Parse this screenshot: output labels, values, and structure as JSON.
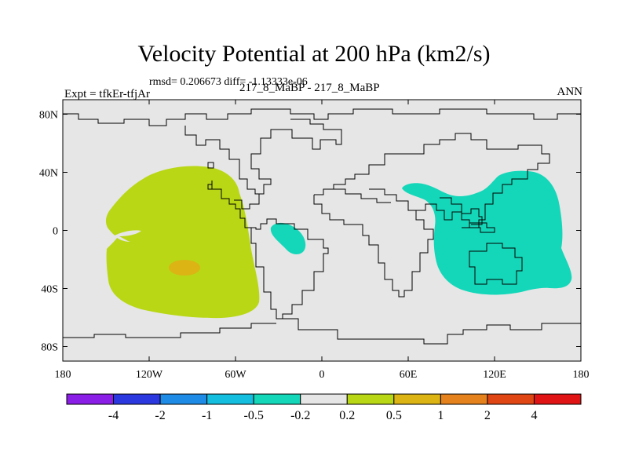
{
  "header": {
    "title": "Velocity Potential at 200 hPa (km2/s)",
    "stats": "rmsd= 0.206673 diff= -1.13333e-06",
    "experiment": "Expt = tfkEr-tfjAr",
    "case_label": "217_8_MaBP - 217_8_MaBP",
    "season": "ANN"
  },
  "map": {
    "projection": "cylindrical equidistant",
    "lon_range": [
      -180,
      180
    ],
    "lat_range": [
      -90,
      90
    ],
    "x_ticks": [
      "180",
      "120W",
      "60W",
      "0",
      "60E",
      "120E",
      "180"
    ],
    "y_ticks": [
      "80N",
      "40N",
      "0",
      "40S",
      "80S"
    ],
    "background_color": "#e6e6e6"
  },
  "colorbar": {
    "colors": [
      "#8a1ee6",
      "#2b38e0",
      "#1e8ce6",
      "#14bede",
      "#14d7b9",
      "#e6e6e6",
      "#b9d714",
      "#dcb414",
      "#e6821e",
      "#e04614",
      "#e01414"
    ],
    "labels": [
      "-4",
      "-2",
      "-1",
      "-0.5",
      "-0.2",
      "0.2",
      "0.5",
      "1",
      "2",
      "4"
    ]
  },
  "colors": {
    "positive_region": "#b9d714",
    "positive_core": "#dcb414",
    "negative_region": "#14d7b9",
    "coastline": "#000000"
  }
}
